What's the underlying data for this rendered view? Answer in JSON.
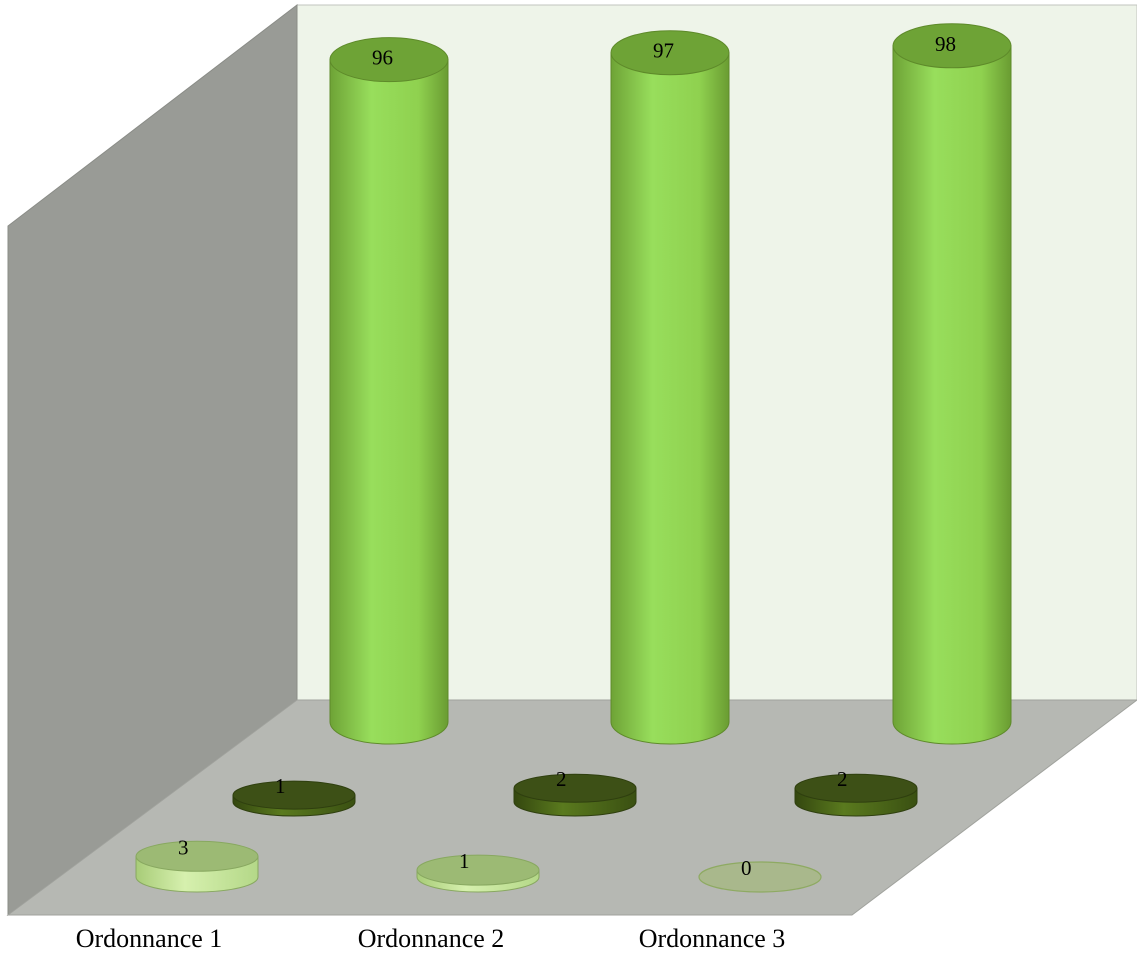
{
  "chart_data": {
    "type": "bar",
    "style": "3d-cylinder",
    "categories": [
      "Ordonnance 1",
      "Ordonnance 2",
      "Ordonnance 3"
    ],
    "series": [
      {
        "values": [
          96,
          97,
          98
        ],
        "color": "#8fd14f"
      },
      {
        "values": [
          1,
          2,
          2
        ],
        "color": "#4a6418"
      },
      {
        "values": [
          3,
          1,
          0
        ],
        "color": "#c4e39a"
      }
    ],
    "ylim": [
      0,
      100
    ],
    "grid": false,
    "legend": "none"
  },
  "colors": {
    "back_wall": "#eef4e9",
    "side_wall": "#999b96",
    "floor": "#b6b8b3"
  }
}
